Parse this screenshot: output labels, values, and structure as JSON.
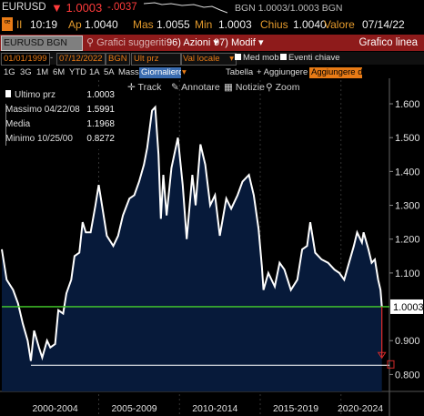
{
  "quote": {
    "ticker": "EURUSD",
    "price": "1.0003",
    "change": "-.0037",
    "bgn_quote": "BGN 1.0003/1.0003 BGN",
    "time_label": "Il",
    "time": "10:19",
    "open_label": "Ap",
    "open": "1.0040",
    "high_label": "Mas",
    "high": "1.0055",
    "low_label": "Min",
    "low": "1.0003",
    "close_label": "Chius",
    "close": "1.0040",
    "value_label": "Valore",
    "date": "07/14/22"
  },
  "toolbar": {
    "security": "EURUSD BGN Curncy",
    "suggested_charts": "Grafici suggeriti",
    "actions_num": "96)",
    "actions": "Azioni",
    "edit_num": "97)",
    "edit": "Modif",
    "chart_type": "Grafico linea"
  },
  "range": {
    "periods": [
      "1G",
      "3G",
      "1M",
      "6M",
      "YTD",
      "1A",
      "5A",
      "Mass"
    ],
    "frequency": "Giornaliero",
    "currency": "Val locale",
    "table": "Tabella",
    "add": "+ Aggiungere",
    "add_input": "Aggiungere da"
  },
  "controls": {
    "start_date": "01/01/1999",
    "end_date": "07/12/2022",
    "source": "BGN",
    "field": "Ult prz",
    "moving_avg": "Med mob",
    "key_events": "Eventi chiave"
  },
  "chart_tools": [
    "Track",
    "Annotare",
    "Notizie",
    "Zoom"
  ],
  "legend": {
    "items": [
      {
        "label": "Ultimo prz",
        "value": "1.0003"
      },
      {
        "label": "Massimo 04/22/08",
        "value": "1.5991"
      },
      {
        "label": "Media",
        "value": "1.1968"
      },
      {
        "label": "Minimo 10/25/00",
        "value": "0.8272"
      }
    ]
  },
  "chart_data": {
    "type": "area",
    "series": [
      {
        "name": "EURUSD BGN Curncy",
        "points": [
          [
            1999.0,
            1.17
          ],
          [
            1999.3,
            1.08
          ],
          [
            1999.7,
            1.05
          ],
          [
            2000.0,
            1.01
          ],
          [
            2000.3,
            0.95
          ],
          [
            2000.6,
            0.9
          ],
          [
            2000.8,
            0.84
          ],
          [
            2001.0,
            0.93
          ],
          [
            2001.3,
            0.88
          ],
          [
            2001.5,
            0.85
          ],
          [
            2001.8,
            0.9
          ],
          [
            2002.0,
            0.88
          ],
          [
            2002.3,
            0.89
          ],
          [
            2002.5,
            0.99
          ],
          [
            2002.8,
            0.98
          ],
          [
            2003.0,
            1.04
          ],
          [
            2003.3,
            1.08
          ],
          [
            2003.5,
            1.15
          ],
          [
            2003.8,
            1.16
          ],
          [
            2004.0,
            1.25
          ],
          [
            2004.2,
            1.22
          ],
          [
            2004.5,
            1.22
          ],
          [
            2004.8,
            1.3
          ],
          [
            2005.0,
            1.36
          ],
          [
            2005.2,
            1.3
          ],
          [
            2005.5,
            1.21
          ],
          [
            2005.9,
            1.18
          ],
          [
            2006.2,
            1.21
          ],
          [
            2006.5,
            1.27
          ],
          [
            2006.9,
            1.32
          ],
          [
            2007.2,
            1.33
          ],
          [
            2007.5,
            1.37
          ],
          [
            2007.8,
            1.42
          ],
          [
            2008.0,
            1.47
          ],
          [
            2008.3,
            1.58
          ],
          [
            2008.5,
            1.59
          ],
          [
            2008.7,
            1.45
          ],
          [
            2008.85,
            1.26
          ],
          [
            2009.0,
            1.39
          ],
          [
            2009.2,
            1.27
          ],
          [
            2009.5,
            1.41
          ],
          [
            2009.9,
            1.5
          ],
          [
            2010.2,
            1.36
          ],
          [
            2010.45,
            1.2
          ],
          [
            2010.8,
            1.39
          ],
          [
            2011.0,
            1.3
          ],
          [
            2011.3,
            1.48
          ],
          [
            2011.6,
            1.42
          ],
          [
            2011.9,
            1.3
          ],
          [
            2012.2,
            1.33
          ],
          [
            2012.5,
            1.21
          ],
          [
            2012.9,
            1.32
          ],
          [
            2013.2,
            1.29
          ],
          [
            2013.6,
            1.33
          ],
          [
            2013.9,
            1.37
          ],
          [
            2014.3,
            1.39
          ],
          [
            2014.6,
            1.33
          ],
          [
            2014.9,
            1.23
          ],
          [
            2015.1,
            1.12
          ],
          [
            2015.2,
            1.05
          ],
          [
            2015.5,
            1.1
          ],
          [
            2015.9,
            1.06
          ],
          [
            2016.2,
            1.13
          ],
          [
            2016.5,
            1.11
          ],
          [
            2016.9,
            1.05
          ],
          [
            2017.3,
            1.08
          ],
          [
            2017.6,
            1.17
          ],
          [
            2017.9,
            1.18
          ],
          [
            2018.1,
            1.25
          ],
          [
            2018.4,
            1.16
          ],
          [
            2018.8,
            1.14
          ],
          [
            2019.2,
            1.13
          ],
          [
            2019.6,
            1.11
          ],
          [
            2019.9,
            1.1
          ],
          [
            2020.2,
            1.08
          ],
          [
            2020.5,
            1.13
          ],
          [
            2020.8,
            1.18
          ],
          [
            2021.0,
            1.22
          ],
          [
            2021.3,
            1.19
          ],
          [
            2021.4,
            1.22
          ],
          [
            2021.7,
            1.17
          ],
          [
            2021.9,
            1.13
          ],
          [
            2022.1,
            1.14
          ],
          [
            2022.3,
            1.08
          ],
          [
            2022.45,
            1.05
          ],
          [
            2022.53,
            1.0003
          ]
        ]
      }
    ],
    "x_ticks": [
      "2000-2004",
      "2005-2009",
      "2010-2014",
      "2015-2019",
      "2020-2024"
    ],
    "y_ticks": [
      "1.600",
      "1.500",
      "1.400",
      "1.300",
      "1.200",
      "1.100",
      "0.900",
      "0.800"
    ],
    "ylim": [
      0.75,
      1.67
    ],
    "xlim": [
      1999.0,
      2023.0
    ],
    "last_value_label": "1.0003",
    "last_value": 1.0003,
    "min_value": 0.8272,
    "colors": {
      "line": "#ffffff",
      "fill": "#071a3a",
      "last_line": "#46d12c",
      "arrow": "#d22a2a",
      "min_line": "#ffffff"
    }
  }
}
